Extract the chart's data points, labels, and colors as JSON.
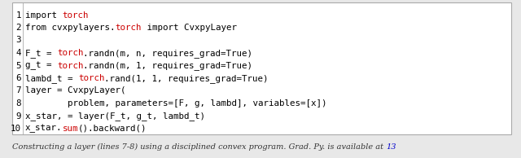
{
  "figsize": [
    6.4,
    1.94
  ],
  "dpi": 100,
  "bg_color": "#e8e8e8",
  "box_bg": "white",
  "box_edge": "#aaaaaa",
  "code_fontsize": 7.8,
  "caption_fontsize": 7.0,
  "lines": [
    {
      "num": "1",
      "segments": [
        [
          "import ",
          "#000000"
        ],
        [
          "torch",
          "#cc0000"
        ]
      ]
    },
    {
      "num": "2",
      "segments": [
        [
          "from cvxpylayers.",
          "#000000"
        ],
        [
          "torch",
          "#cc0000"
        ],
        [
          " import CvxpyLayer",
          "#000000"
        ]
      ]
    },
    {
      "num": "3",
      "segments": []
    },
    {
      "num": "4",
      "segments": [
        [
          "F_t = ",
          "#000000"
        ],
        [
          "torch",
          "#cc0000"
        ],
        [
          ".randn(m, n, requires_grad=True)",
          "#000000"
        ]
      ]
    },
    {
      "num": "5",
      "segments": [
        [
          "g_t = ",
          "#000000"
        ],
        [
          "torch",
          "#cc0000"
        ],
        [
          ".randn(m, 1, requires_grad=True)",
          "#000000"
        ]
      ]
    },
    {
      "num": "6",
      "segments": [
        [
          "lambd_t = ",
          "#000000"
        ],
        [
          "torch",
          "#cc0000"
        ],
        [
          ".rand(1, 1, requires_grad=True)",
          "#000000"
        ]
      ]
    },
    {
      "num": "7",
      "segments": [
        [
          "layer = CvxpyLayer(",
          "#000000"
        ]
      ]
    },
    {
      "num": "8",
      "segments": [
        [
          "        problem, parameters=[F, g, lambd], variables=[x])",
          "#000000"
        ]
      ]
    },
    {
      "num": "9",
      "segments": [
        [
          "x_star, = layer(F_t, g_t, lambd_t)",
          "#000000"
        ]
      ]
    },
    {
      "num": "10",
      "segments": [
        [
          "x_star.",
          "#000000"
        ],
        [
          "sum",
          "#cc0000"
        ],
        [
          "().backward()",
          "#000000"
        ]
      ]
    }
  ],
  "caption_normal": "Constructing a layer (lines 7-8) using a disciplined convex program. Grad. Py. is available at ",
  "caption_link": "13",
  "caption_link_color": "#0000cc"
}
